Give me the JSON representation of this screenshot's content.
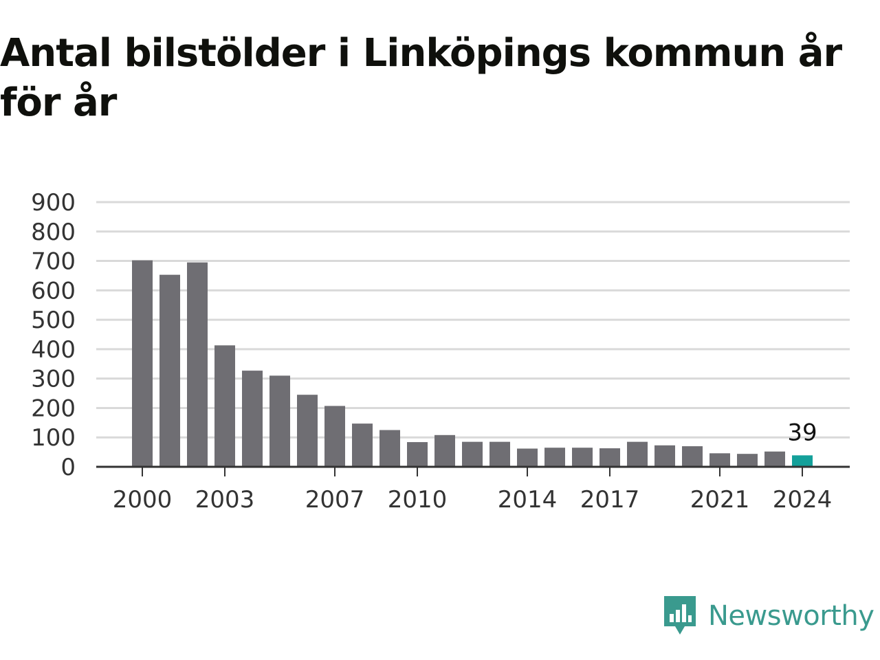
{
  "title": "Antal bilstölder i Linköpings kommun år för år",
  "brand": {
    "name": "Newsworthy",
    "icon": "newsworthy-logo-icon",
    "color": "#3a9a8e"
  },
  "chart_data": {
    "type": "bar",
    "title": "Antal bilstölder i Linköpings kommun år för år",
    "xlabel": "",
    "ylabel": "",
    "ylim": [
      0,
      900
    ],
    "yticks": [
      0,
      100,
      200,
      300,
      400,
      500,
      600,
      700,
      800,
      900
    ],
    "grid": true,
    "legend": "none",
    "x": [
      2000,
      2001,
      2002,
      2003,
      2004,
      2005,
      2006,
      2007,
      2008,
      2009,
      2010,
      2011,
      2012,
      2013,
      2014,
      2015,
      2016,
      2017,
      2018,
      2019,
      2020,
      2021,
      2022,
      2023,
      2024
    ],
    "x_tick_labels": [
      "2000",
      "2003",
      "2007",
      "2010",
      "2014",
      "2017",
      "2021",
      "2024"
    ],
    "values": [
      702,
      653,
      695,
      413,
      327,
      310,
      245,
      207,
      147,
      125,
      84,
      108,
      85,
      85,
      62,
      65,
      65,
      63,
      85,
      73,
      70,
      46,
      44,
      52,
      39
    ],
    "highlight": {
      "year": 2024,
      "value_label": "39"
    },
    "colors": {
      "bar": "#6f6e73",
      "highlight": "#14a09a",
      "grid": "#d9d9d9",
      "axis": "#333333"
    }
  }
}
